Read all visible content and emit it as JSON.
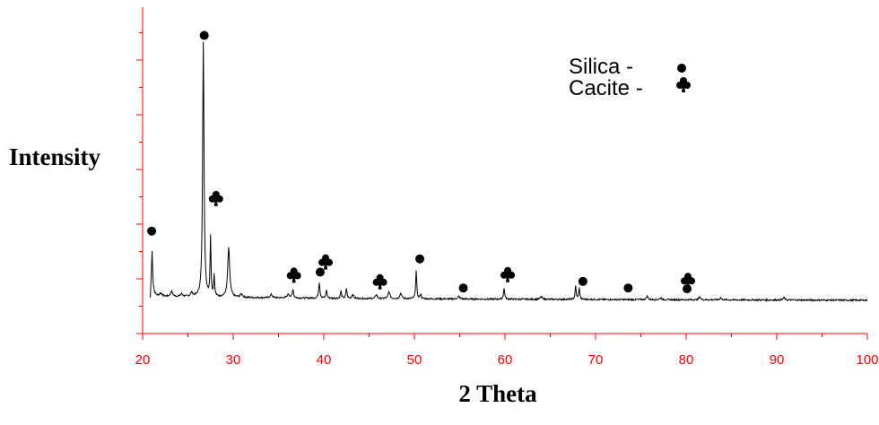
{
  "chart_data": {
    "type": "line",
    "title": "",
    "xlabel": "2 Theta",
    "ylabel": "Intensity",
    "xlim": [
      20,
      100
    ],
    "x_ticks": [
      20,
      30,
      40,
      50,
      60,
      70,
      80,
      90,
      100
    ],
    "y_ticks_labeled": false,
    "grid": false,
    "axis_color": "#ff0000",
    "line_color": "#000000",
    "legend": {
      "placement": "top-right",
      "entries": [
        {
          "label": "Silica -",
          "marker": "filled-circle"
        },
        {
          "label": "Cacite -",
          "marker": "club"
        }
      ]
    },
    "peaks": [
      {
        "x": 21.0,
        "height": 0.214,
        "width": 0.1
      },
      {
        "x": 22.0,
        "height": 0.012,
        "width": 0.15
      },
      {
        "x": 23.2,
        "height": 0.018,
        "width": 0.15
      },
      {
        "x": 24.3,
        "height": 0.01,
        "width": 0.15
      },
      {
        "x": 25.4,
        "height": 0.014,
        "width": 0.15
      },
      {
        "x": 26.7,
        "height": 0.965,
        "width": 0.09
      },
      {
        "x": 27.5,
        "height": 0.225,
        "width": 0.06
      },
      {
        "x": 27.9,
        "height": 0.08,
        "width": 0.06
      },
      {
        "x": 29.5,
        "height": 0.186,
        "width": 0.13
      },
      {
        "x": 30.9,
        "height": 0.012,
        "width": 0.15
      },
      {
        "x": 34.2,
        "height": 0.012,
        "width": 0.15
      },
      {
        "x": 36.1,
        "height": 0.014,
        "width": 0.15
      },
      {
        "x": 36.6,
        "height": 0.034,
        "width": 0.08
      },
      {
        "x": 39.5,
        "height": 0.06,
        "width": 0.08
      },
      {
        "x": 40.3,
        "height": 0.032,
        "width": 0.07
      },
      {
        "x": 41.9,
        "height": 0.028,
        "width": 0.07
      },
      {
        "x": 42.5,
        "height": 0.038,
        "width": 0.07
      },
      {
        "x": 43.2,
        "height": 0.016,
        "width": 0.1
      },
      {
        "x": 45.8,
        "height": 0.016,
        "width": 0.1
      },
      {
        "x": 47.2,
        "height": 0.026,
        "width": 0.12
      },
      {
        "x": 48.5,
        "height": 0.02,
        "width": 0.12
      },
      {
        "x": 50.2,
        "height": 0.106,
        "width": 0.07
      },
      {
        "x": 50.7,
        "height": 0.018,
        "width": 0.07
      },
      {
        "x": 54.9,
        "height": 0.01,
        "width": 0.12
      },
      {
        "x": 59.9,
        "height": 0.04,
        "width": 0.08
      },
      {
        "x": 64.0,
        "height": 0.01,
        "width": 0.12
      },
      {
        "x": 67.8,
        "height": 0.05,
        "width": 0.07
      },
      {
        "x": 68.2,
        "height": 0.042,
        "width": 0.07
      },
      {
        "x": 75.7,
        "height": 0.014,
        "width": 0.1
      },
      {
        "x": 77.2,
        "height": 0.008,
        "width": 0.1
      },
      {
        "x": 81.5,
        "height": 0.012,
        "width": 0.1
      },
      {
        "x": 83.8,
        "height": 0.008,
        "width": 0.1
      },
      {
        "x": 90.8,
        "height": 0.01,
        "width": 0.1
      }
    ],
    "markers": [
      {
        "x": 21.0,
        "level": 0.255,
        "symbol": "circle"
      },
      {
        "x": 26.8,
        "level": 0.995,
        "symbol": "circle"
      },
      {
        "x": 28.1,
        "level": 0.37,
        "symbol": "club"
      },
      {
        "x": 36.7,
        "level": 0.08,
        "symbol": "club"
      },
      {
        "x": 39.6,
        "level": 0.1,
        "symbol": "circle"
      },
      {
        "x": 40.2,
        "level": 0.13,
        "symbol": "club"
      },
      {
        "x": 46.2,
        "level": 0.055,
        "symbol": "club"
      },
      {
        "x": 50.6,
        "level": 0.15,
        "symbol": "circle"
      },
      {
        "x": 55.4,
        "level": 0.04,
        "symbol": "circle"
      },
      {
        "x": 60.3,
        "level": 0.082,
        "symbol": "club"
      },
      {
        "x": 68.6,
        "level": 0.065,
        "symbol": "circle"
      },
      {
        "x": 73.6,
        "level": 0.04,
        "symbol": "circle"
      },
      {
        "x": 80.2,
        "level": 0.06,
        "symbol": "club"
      },
      {
        "x": 80.1,
        "level": 0.037,
        "symbol": "circle"
      }
    ]
  }
}
